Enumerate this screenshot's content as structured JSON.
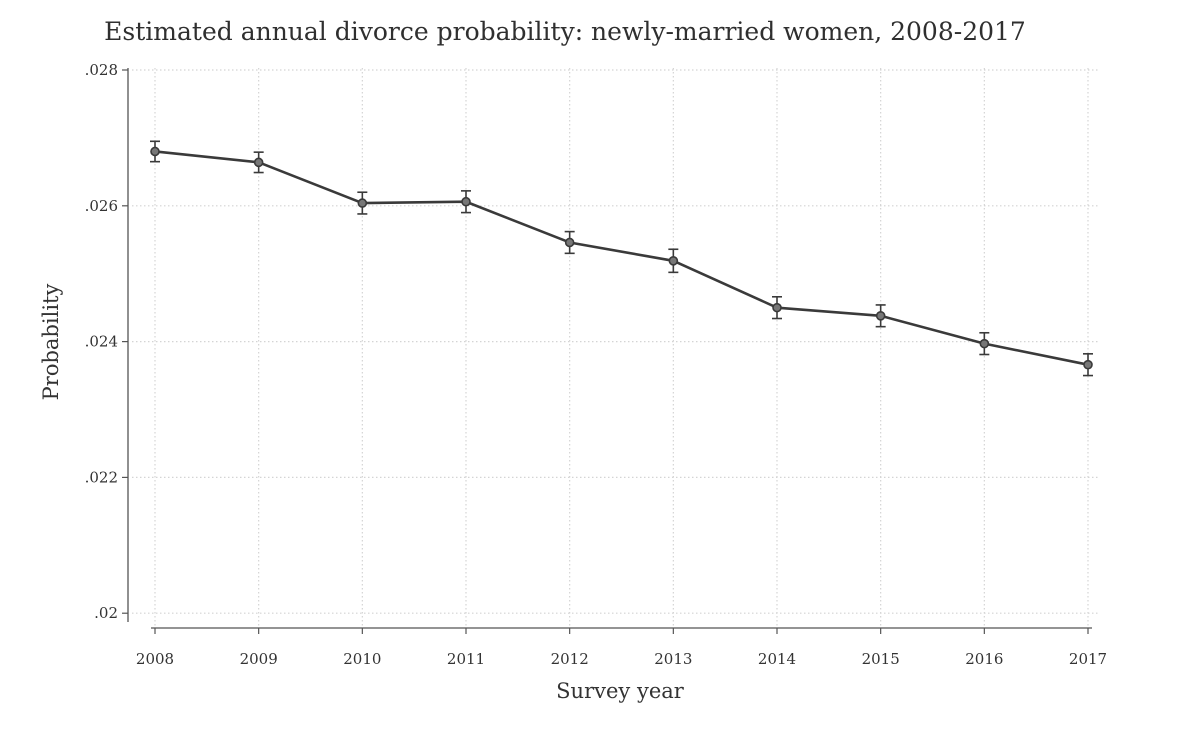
{
  "chart_data": {
    "type": "line",
    "title": "Estimated annual divorce probability: newly-married women, 2008-2017",
    "xlabel": "Survey year",
    "ylabel": "Probability",
    "x": [
      2008,
      2009,
      2010,
      2011,
      2012,
      2013,
      2014,
      2015,
      2016,
      2017
    ],
    "x_tick_labels": [
      "2008",
      "2009",
      "2010",
      "2011",
      "2012",
      "2013",
      "2014",
      "2015",
      "2016",
      "2017"
    ],
    "y_ticks": [
      0.02,
      0.022,
      0.024,
      0.026,
      0.028
    ],
    "y_tick_labels": [
      ".02",
      ".022",
      ".024",
      ".026",
      ".028"
    ],
    "ylim": [
      0.0199,
      0.028
    ],
    "grid": true,
    "series": [
      {
        "name": "Probability",
        "values": [
          0.0268,
          0.02664,
          0.02604,
          0.02606,
          0.02546,
          0.02519,
          0.0245,
          0.02438,
          0.02397,
          0.02366
        ],
        "ci_lower": [
          0.02665,
          0.02649,
          0.02588,
          0.0259,
          0.0253,
          0.02502,
          0.02434,
          0.02422,
          0.02381,
          0.0235
        ],
        "ci_upper": [
          0.02695,
          0.02679,
          0.0262,
          0.02622,
          0.02562,
          0.02536,
          0.02466,
          0.02454,
          0.02413,
          0.02382
        ]
      }
    ],
    "colors": {
      "line": "#3a3a3a",
      "grid": "#d4d4d4",
      "axis": "#555555"
    }
  }
}
